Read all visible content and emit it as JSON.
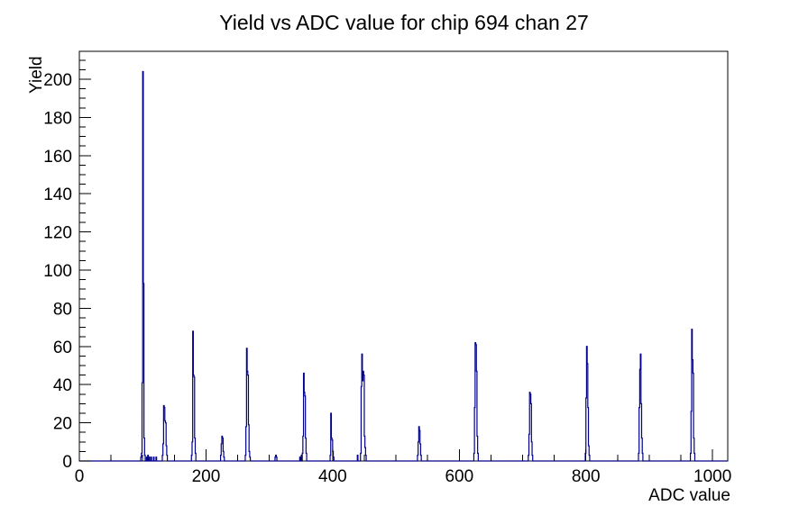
{
  "chart_data": {
    "type": "bar",
    "title": "Yield vs ADC value for chip 694 chan 27",
    "xlabel": "ADC value",
    "ylabel": "Yield",
    "xlim": [
      0,
      1024
    ],
    "ylim": [
      0,
      214.6
    ],
    "bin_width": 1,
    "grid": false,
    "legend": "none",
    "line_color": "#00008b",
    "axis_color": "#000000",
    "background_color": "#ffffff",
    "x_axis": {
      "label": "ADC value",
      "major_tick_step": 200,
      "minor_tick_step": 50,
      "tick_labels": [
        "0",
        "200",
        "400",
        "600",
        "800",
        "1000"
      ],
      "tick_values": [
        0,
        200,
        400,
        600,
        800,
        1000
      ]
    },
    "y_axis": {
      "label": "Yield",
      "major_tick_step": 20,
      "minor_tick_step": 5,
      "tick_labels": [
        "0",
        "20",
        "40",
        "60",
        "80",
        "100",
        "120",
        "140",
        "160",
        "180",
        "200"
      ],
      "tick_values": [
        0,
        20,
        40,
        60,
        80,
        100,
        120,
        140,
        160,
        180,
        200
      ]
    },
    "points_format": "[adc_bin, yield]",
    "points": [
      [
        97,
        2
      ],
      [
        98,
        4
      ],
      [
        99,
        41
      ],
      [
        100,
        204
      ],
      [
        101,
        93
      ],
      [
        102,
        12
      ],
      [
        103,
        3
      ],
      [
        106,
        2
      ],
      [
        108,
        3
      ],
      [
        110,
        2
      ],
      [
        113,
        2
      ],
      [
        117,
        2
      ],
      [
        121,
        2
      ],
      [
        131,
        3
      ],
      [
        132,
        9
      ],
      [
        133,
        29
      ],
      [
        134,
        28
      ],
      [
        135,
        21
      ],
      [
        136,
        20
      ],
      [
        137,
        8
      ],
      [
        138,
        3
      ],
      [
        177,
        3
      ],
      [
        178,
        10
      ],
      [
        179,
        68
      ],
      [
        180,
        45
      ],
      [
        181,
        44
      ],
      [
        182,
        12
      ],
      [
        183,
        4
      ],
      [
        223,
        3
      ],
      [
        224,
        9
      ],
      [
        225,
        13
      ],
      [
        226,
        12
      ],
      [
        227,
        5
      ],
      [
        228,
        2
      ],
      [
        262,
        3
      ],
      [
        263,
        18
      ],
      [
        264,
        59
      ],
      [
        265,
        47
      ],
      [
        266,
        45
      ],
      [
        267,
        19
      ],
      [
        268,
        5
      ],
      [
        269,
        2
      ],
      [
        309,
        2
      ],
      [
        310,
        3
      ],
      [
        311,
        2
      ],
      [
        348,
        2
      ],
      [
        352,
        4
      ],
      [
        353,
        13
      ],
      [
        354,
        46
      ],
      [
        355,
        36
      ],
      [
        356,
        34
      ],
      [
        357,
        12
      ],
      [
        358,
        4
      ],
      [
        396,
        3
      ],
      [
        397,
        25
      ],
      [
        398,
        12
      ],
      [
        399,
        11
      ],
      [
        400,
        5
      ],
      [
        401,
        2
      ],
      [
        439,
        3
      ],
      [
        444,
        4
      ],
      [
        445,
        39
      ],
      [
        446,
        56
      ],
      [
        447,
        42
      ],
      [
        448,
        47
      ],
      [
        449,
        45
      ],
      [
        450,
        13
      ],
      [
        451,
        7
      ],
      [
        452,
        3
      ],
      [
        534,
        3
      ],
      [
        535,
        10
      ],
      [
        536,
        18
      ],
      [
        537,
        16
      ],
      [
        538,
        9
      ],
      [
        539,
        3
      ],
      [
        623,
        4
      ],
      [
        624,
        28
      ],
      [
        625,
        62
      ],
      [
        626,
        61
      ],
      [
        627,
        47
      ],
      [
        628,
        13
      ],
      [
        629,
        4
      ],
      [
        709,
        3
      ],
      [
        710,
        14
      ],
      [
        711,
        36
      ],
      [
        712,
        35
      ],
      [
        713,
        30
      ],
      [
        714,
        10
      ],
      [
        715,
        3
      ],
      [
        799,
        4
      ],
      [
        800,
        33
      ],
      [
        801,
        60
      ],
      [
        802,
        51
      ],
      [
        803,
        28
      ],
      [
        804,
        8
      ],
      [
        805,
        3
      ],
      [
        883,
        4
      ],
      [
        884,
        28
      ],
      [
        885,
        48
      ],
      [
        886,
        56
      ],
      [
        887,
        30
      ],
      [
        888,
        12
      ],
      [
        889,
        4
      ],
      [
        965,
        4
      ],
      [
        966,
        26
      ],
      [
        967,
        69
      ],
      [
        968,
        53
      ],
      [
        969,
        46
      ],
      [
        970,
        12
      ],
      [
        971,
        4
      ]
    ]
  }
}
